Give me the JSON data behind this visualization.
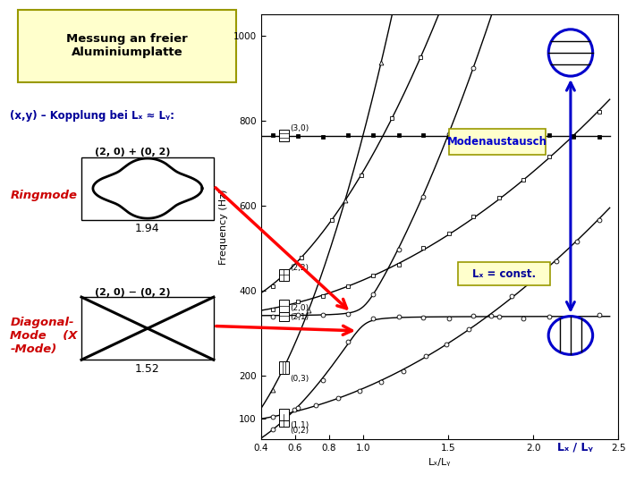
{
  "title_box_text": "Messung an freier\nAluminiumplatte",
  "kopplung_text": "(x,y) – Kopplung bei Lₓ ≈ Lᵧ:",
  "ringmode_label": "Ringmode",
  "diagonal_label": "Diagonal-\nMode    (X\n-Mode)",
  "ringmode_ratio": "1.94",
  "diagonal_ratio": "1.52",
  "ringmode_formula": "(2, 0) + (0, 2)",
  "diagonal_formula": "(2, 0) − (0, 2)",
  "modenaustausch_label": "Modenaustausch",
  "lx_const_label": "Lₓ = const.",
  "xlabel_left": "Lₓ/Lᵧ",
  "xlabel_right": "Lₓ / Lᵧ",
  "ylabel": "Frequency (Hz)",
  "xlim": [
    0.4,
    2.5
  ],
  "ylim": [
    50,
    1050
  ],
  "F0": 85,
  "delta": 22,
  "title_bg": "#ffffcc",
  "ann_bg": "#ffffcc"
}
